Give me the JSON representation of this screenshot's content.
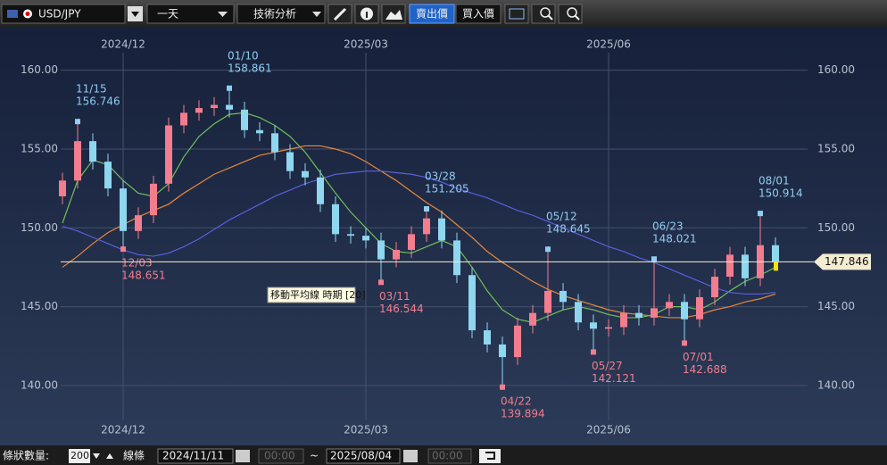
{
  "toolbar": {
    "symbol": "USD/JPY",
    "period": "一天",
    "analysis": "技術分析",
    "sell": "賣出價",
    "buy": "買入價"
  },
  "footer": {
    "bars_label": "條狀數量:",
    "bars": "200",
    "line_label": "線條",
    "from_date": "2024/11/11",
    "from_time": "00:00",
    "sep": "~",
    "to_date": "2025/08/04",
    "to_time": "00:00"
  },
  "chart_data": {
    "type": "candlestick",
    "tooltip": "移動平均線 時期 [20]",
    "up_color": "#f27d8e",
    "down_color": "#8fd6ef",
    "open": [
      152.0,
      153.0,
      155.5,
      154.2,
      152.5,
      149.8,
      150.8,
      152.8,
      156.5,
      157.3,
      157.6,
      157.8,
      157.5,
      156.2,
      156.0,
      154.8,
      153.6,
      153.2,
      151.5,
      149.6,
      149.5,
      149.2,
      148.0,
      148.6,
      149.6,
      150.6,
      149.2,
      147.0,
      143.5,
      142.6,
      141.8,
      143.8,
      144.6,
      146.0,
      145.3,
      144.0,
      143.6,
      143.7,
      144.6,
      144.3,
      144.9,
      145.3,
      144.2,
      145.6,
      146.9,
      148.3,
      146.8,
      148.9
    ],
    "high": [
      153.5,
      156.746,
      156.0,
      154.7,
      153.0,
      151.3,
      153.3,
      157.0,
      157.8,
      158.1,
      158.3,
      158.861,
      158.0,
      156.7,
      156.5,
      155.3,
      154.1,
      153.7,
      152.0,
      150.1,
      150.0,
      149.7,
      149.1,
      150.1,
      151.205,
      151.1,
      149.7,
      147.5,
      144.0,
      143.1,
      144.3,
      145.1,
      148.645,
      146.5,
      145.8,
      144.5,
      144.2,
      145.1,
      145.1,
      148.021,
      145.8,
      145.8,
      146.1,
      147.4,
      148.8,
      148.8,
      150.914,
      149.4
    ],
    "low": [
      151.5,
      152.5,
      153.7,
      152.0,
      148.651,
      149.3,
      150.3,
      152.3,
      156.0,
      156.8,
      157.1,
      157.0,
      155.7,
      155.5,
      154.3,
      153.1,
      152.7,
      151.0,
      149.1,
      149.0,
      148.7,
      146.544,
      147.5,
      148.1,
      149.1,
      148.7,
      146.5,
      143.0,
      142.1,
      139.894,
      141.3,
      143.3,
      144.1,
      144.8,
      143.5,
      142.121,
      143.1,
      143.2,
      143.8,
      143.8,
      144.4,
      142.688,
      143.7,
      145.1,
      146.4,
      146.3,
      146.3,
      147.3
    ],
    "close": [
      153.0,
      155.5,
      154.2,
      152.5,
      149.8,
      150.8,
      152.8,
      156.5,
      157.3,
      157.6,
      157.8,
      157.5,
      156.2,
      156.0,
      154.8,
      153.6,
      153.2,
      151.5,
      149.6,
      149.5,
      149.2,
      148.0,
      148.6,
      149.6,
      150.6,
      149.2,
      147.0,
      143.5,
      142.6,
      141.8,
      143.8,
      144.6,
      146.0,
      145.3,
      144.0,
      143.6,
      143.7,
      144.6,
      144.3,
      144.9,
      145.3,
      144.2,
      145.6,
      146.9,
      148.3,
      146.8,
      148.9,
      147.846
    ],
    "series": [
      {
        "color": "#6fbf5a",
        "values": [
          150.3,
          153.0,
          154.3,
          154.0,
          153.0,
          152.2,
          152.0,
          152.8,
          154.5,
          155.8,
          156.6,
          157.2,
          157.3,
          157.0,
          156.5,
          155.8,
          154.8,
          153.5,
          152.2,
          151.0,
          150.0,
          149.0,
          148.5,
          148.4,
          148.8,
          149.2,
          148.8,
          147.5,
          146.0,
          144.8,
          144.2,
          144.0,
          144.4,
          144.8,
          145.0,
          144.8,
          144.5,
          144.3,
          144.3,
          144.5,
          145.0,
          145.0,
          144.8,
          145.3,
          146.0,
          146.6,
          147.0,
          147.5
        ]
      },
      {
        "color": "#e8883a",
        "values": [
          147.5,
          148.2,
          149.0,
          149.7,
          150.2,
          150.7,
          151.1,
          151.5,
          152.2,
          152.8,
          153.4,
          153.8,
          154.2,
          154.6,
          154.8,
          155.0,
          155.2,
          155.2,
          155.0,
          154.7,
          154.2,
          153.6,
          153.0,
          152.3,
          151.6,
          151.0,
          150.2,
          149.4,
          148.5,
          147.8,
          147.2,
          146.6,
          146.1,
          145.7,
          145.4,
          145.1,
          144.8,
          144.6,
          144.5,
          144.4,
          144.3,
          144.3,
          144.5,
          144.8,
          145.0,
          145.3,
          145.5,
          145.8
        ]
      },
      {
        "color": "#5a5fe0",
        "values": [
          150.1,
          149.8,
          149.4,
          149.0,
          148.6,
          148.3,
          148.2,
          148.4,
          148.8,
          149.3,
          149.9,
          150.5,
          151.0,
          151.5,
          152.0,
          152.4,
          152.8,
          153.1,
          153.4,
          153.5,
          153.6,
          153.6,
          153.5,
          153.4,
          153.2,
          152.9,
          152.5,
          152.2,
          151.9,
          151.5,
          151.1,
          150.8,
          150.4,
          150.0,
          149.6,
          149.2,
          148.8,
          148.5,
          148.1,
          147.8,
          147.4,
          147.0,
          146.6,
          146.2,
          145.9,
          145.8,
          145.8,
          145.9
        ]
      }
    ],
    "annotations": [
      {
        "date": "11/15",
        "value": 156.746,
        "kind": "high"
      },
      {
        "date": "12/03",
        "value": 148.651,
        "kind": "low"
      },
      {
        "date": "01/10",
        "value": 158.861,
        "kind": "high"
      },
      {
        "date": "03/11",
        "value": 146.544,
        "kind": "low"
      },
      {
        "date": "03/28",
        "value": 151.205,
        "kind": "high"
      },
      {
        "date": "04/22",
        "value": 139.894,
        "kind": "low"
      },
      {
        "date": "05/12",
        "value": 148.645,
        "kind": "high"
      },
      {
        "date": "05/27",
        "value": 142.121,
        "kind": "low"
      },
      {
        "date": "06/23",
        "value": 148.021,
        "kind": "high"
      },
      {
        "date": "07/01",
        "value": 142.688,
        "kind": "low"
      },
      {
        "date": "08/01",
        "value": 150.914,
        "kind": "high"
      }
    ],
    "ylim": [
      136.2,
      162.7
    ],
    "yticks": [
      {
        "value": 140,
        "label": "140.00"
      },
      {
        "value": 145,
        "label": "145.00"
      },
      {
        "value": 150,
        "label": "150.00"
      },
      {
        "value": 155,
        "label": "155.00"
      },
      {
        "value": 160,
        "label": "160.00"
      }
    ],
    "xticks": [
      {
        "value": 4,
        "label": "2024/12"
      },
      {
        "value": 20,
        "label": "2025/03"
      },
      {
        "value": 36,
        "label": "2025/06"
      }
    ],
    "grid": true
  }
}
